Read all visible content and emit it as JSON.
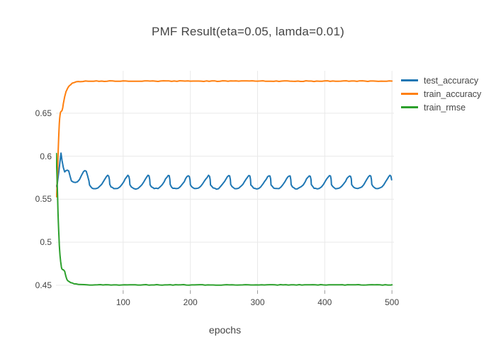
{
  "page": {
    "background": "#ffffff",
    "text_color": "#444444",
    "grid_color": "#e9e9e9",
    "tick_mark_color": "#9a9a9a"
  },
  "chart_data": {
    "type": "line",
    "title": "PMF Result(eta=0.05, lamda=0.01)",
    "xlabel": "epochs",
    "ylabel": "",
    "grid": true,
    "legend_position": "outside-top-right",
    "x_range": [
      0,
      503
    ],
    "y_range": [
      0.4441,
      0.6993
    ],
    "x_ticks": [
      100,
      200,
      300,
      400,
      500
    ],
    "x_tick_labels": [
      "100",
      "200",
      "300",
      "400",
      "500"
    ],
    "y_ticks": [
      0.45,
      0.5,
      0.55,
      0.6,
      0.65
    ],
    "y_tick_labels": [
      "0.45",
      "0.5",
      "0.55",
      "0.6",
      "0.65"
    ],
    "series": [
      {
        "name": "test_accuracy",
        "color": "#1f77b4",
        "noise": 0.0006,
        "head": [
          [
            0.5,
            0.5645
          ],
          [
            2,
            0.568
          ],
          [
            4,
            0.58
          ],
          [
            6,
            0.594
          ],
          [
            7.5,
            0.6035
          ],
          [
            9,
            0.5955
          ],
          [
            11,
            0.5865
          ],
          [
            13,
            0.5818
          ],
          [
            15,
            0.5828
          ],
          [
            17,
            0.5838
          ],
          [
            19,
            0.5825
          ],
          [
            21,
            0.577
          ],
          [
            23,
            0.5718
          ],
          [
            26,
            0.5697
          ],
          [
            29,
            0.5695
          ],
          [
            32,
            0.5705
          ],
          [
            35,
            0.5733
          ],
          [
            38,
            0.5775
          ],
          [
            41,
            0.5818
          ],
          [
            43,
            0.5833
          ],
          [
            45,
            0.5825
          ],
          [
            47,
            0.577
          ],
          [
            49,
            0.571
          ]
        ],
        "cycle": {
          "start": 50,
          "end": 500,
          "period": 30,
          "points": [
            [
              0,
              0.5668
            ],
            [
              2,
              0.5645
            ],
            [
              4,
              0.5632
            ],
            [
              6,
              0.5625
            ],
            [
              9,
              0.5622
            ],
            [
              12,
              0.5628
            ],
            [
              15,
              0.5645
            ],
            [
              18,
              0.5672
            ],
            [
              21,
              0.5708
            ],
            [
              23,
              0.5735
            ],
            [
              25,
              0.5758
            ],
            [
              27,
              0.5775
            ],
            [
              28.5,
              0.5768
            ],
            [
              29.5,
              0.573
            ]
          ]
        }
      },
      {
        "name": "train_accuracy",
        "color": "#ff7f0e",
        "noise": 0.0004,
        "head": [
          [
            1,
            0.553
          ],
          [
            1.5,
            0.5635
          ],
          [
            2,
            0.574
          ],
          [
            2.5,
            0.585
          ],
          [
            3,
            0.5985
          ],
          [
            3.5,
            0.61
          ],
          [
            4,
            0.621
          ],
          [
            4.5,
            0.6305
          ],
          [
            5,
            0.638
          ],
          [
            5.5,
            0.6435
          ],
          [
            6,
            0.6475
          ],
          [
            6.5,
            0.6502
          ],
          [
            7,
            0.6515
          ],
          [
            8,
            0.6525
          ],
          [
            9,
            0.6532
          ],
          [
            9.5,
            0.6545
          ],
          [
            10,
            0.6565
          ],
          [
            11,
            0.661
          ],
          [
            12,
            0.6655
          ],
          [
            13,
            0.6693
          ],
          [
            14,
            0.6722
          ],
          [
            15,
            0.6748
          ],
          [
            16,
            0.6768
          ],
          [
            17,
            0.6785
          ],
          [
            18,
            0.6798
          ],
          [
            19,
            0.6808
          ],
          [
            20,
            0.6818
          ],
          [
            22,
            0.6833
          ],
          [
            24,
            0.6845
          ],
          [
            26,
            0.6853
          ],
          [
            28,
            0.6859
          ],
          [
            30,
            0.6863
          ],
          [
            33,
            0.6867
          ],
          [
            36,
            0.687
          ],
          [
            40,
            0.6872
          ]
        ],
        "tail": {
          "from": 44,
          "to": 500,
          "step": 4,
          "value": 0.6873
        }
      },
      {
        "name": "train_rmse",
        "color": "#2ca02c",
        "noise": 0.0003,
        "head": [
          [
            0.5,
            0.603
          ],
          [
            1,
            0.5905
          ],
          [
            1.5,
            0.5775
          ],
          [
            2,
            0.5635
          ],
          [
            2.5,
            0.5495
          ],
          [
            3,
            0.536
          ],
          [
            3.5,
            0.524
          ],
          [
            4,
            0.5135
          ],
          [
            4.5,
            0.5045
          ],
          [
            5,
            0.4965
          ],
          [
            5.5,
            0.49
          ],
          [
            6,
            0.4845
          ],
          [
            6.5,
            0.4805
          ],
          [
            7,
            0.4775
          ],
          [
            7.5,
            0.4745
          ],
          [
            8,
            0.4715
          ],
          [
            8.5,
            0.4697
          ],
          [
            9,
            0.469
          ],
          [
            10,
            0.4683
          ],
          [
            11,
            0.4678
          ],
          [
            12,
            0.4672
          ],
          [
            13,
            0.4662
          ],
          [
            13.5,
            0.4645
          ],
          [
            14,
            0.4625
          ],
          [
            15,
            0.4595
          ],
          [
            16,
            0.4572
          ],
          [
            17,
            0.4558
          ],
          [
            18,
            0.4548
          ],
          [
            20,
            0.4538
          ],
          [
            22,
            0.453
          ],
          [
            24,
            0.4524
          ],
          [
            27,
            0.4518
          ],
          [
            30,
            0.4513
          ],
          [
            34,
            0.4509
          ],
          [
            38,
            0.4507
          ],
          [
            42,
            0.4505
          ]
        ],
        "tail": {
          "from": 46,
          "to": 500,
          "step": 4,
          "value": 0.4504
        }
      }
    ]
  },
  "legend": {
    "items": [
      {
        "label": "test_accuracy"
      },
      {
        "label": "train_accuracy"
      },
      {
        "label": "train_rmse"
      }
    ]
  }
}
